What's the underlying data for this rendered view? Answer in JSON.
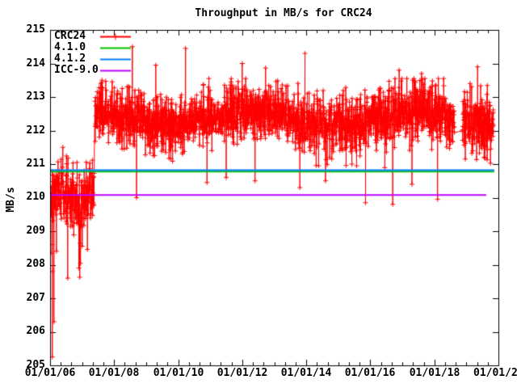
{
  "window": {
    "bg": "#ffffff",
    "frame_color": "#000000"
  },
  "chart_data": {
    "type": "scatter",
    "title": "Throughput in MB/s for CRC24",
    "xlabel": "",
    "ylabel": "MB/s",
    "x_range_years": [
      2006,
      2020
    ],
    "y_range": [
      205,
      215
    ],
    "grid": false,
    "legend_position": "top-left-inside",
    "x_major_tick_labels": [
      "01/01/06",
      "01/01/08",
      "01/01/10",
      "01/01/12",
      "01/01/14",
      "01/01/16",
      "01/01/18",
      "01/01/2"
    ],
    "x_minor_intervals_per_major": 6,
    "y_tick_labels": [
      "215",
      "214",
      "213",
      "212",
      "211",
      "210",
      "209",
      "208",
      "207",
      "206",
      "205"
    ],
    "series": [
      {
        "name": "CRC24",
        "color": "#ff0000",
        "style": "linespoints",
        "marker": "plus",
        "summary": "Daily throughput samples; 2006.0-2007.4 noisy cluster mean ~210.1 MB/s (range 208.3-211.6, spikes down to 205.3); from 2007.4-2019.85 band mean ~212.35 MB/s (range ~211.0-213.6) with occasional dips to ~209.8-210.6 and spikes to ~214.5; data gap 2018.63-2018.87",
        "segments": [
          {
            "t0": 2006.02,
            "t1": 2007.38,
            "step": 0.006,
            "base": 210.05,
            "wave_amp": 0.3,
            "wave_freq": 5.5,
            "sigma": 0.55,
            "clip": [
              208.3,
              211.55
            ],
            "tail_p": 0.07,
            "tail_max": 1.6,
            "spike_p": 0.01,
            "spike_max": 0.3
          },
          {
            "t0": 2007.4,
            "t1": 2019.85,
            "step": 0.0055,
            "base": 212.35,
            "wave_amp": 0.22,
            "wave_freq": 1.25,
            "sigma": 0.42,
            "clip": [
              210.95,
              213.55
            ],
            "tail_p": 0.045,
            "tail_max": 0.75,
            "spike_p": 0.02,
            "spike_max": 0.6
          }
        ],
        "gaps": [
          [
            2018.63,
            2018.87
          ]
        ],
        "outliers": [
          [
            2006.07,
            205.25
          ],
          [
            2006.07,
            207.8
          ],
          [
            2006.12,
            206.3
          ],
          [
            2006.2,
            208.4
          ],
          [
            2006.55,
            207.6
          ],
          [
            2006.9,
            207.9
          ],
          [
            2008.57,
            214.5
          ],
          [
            2008.7,
            210.0
          ],
          [
            2009.3,
            213.95
          ],
          [
            2010.23,
            214.45
          ],
          [
            2010.9,
            210.45
          ],
          [
            2011.5,
            210.6
          ],
          [
            2012.0,
            214.0
          ],
          [
            2012.4,
            210.5
          ],
          [
            2013.8,
            210.3
          ],
          [
            2013.96,
            214.3
          ],
          [
            2014.6,
            210.5
          ],
          [
            2015.85,
            209.85
          ],
          [
            2016.7,
            209.8
          ],
          [
            2016.9,
            213.8
          ],
          [
            2017.3,
            210.4
          ],
          [
            2017.6,
            213.7
          ],
          [
            2018.1,
            209.95
          ],
          [
            2019.35,
            213.9
          ]
        ]
      },
      {
        "name": "4.1.0",
        "color": "#00c000",
        "style": "hline",
        "value": 210.78,
        "t0": 2006.0,
        "t1": 2019.87
      },
      {
        "name": "4.1.2",
        "color": "#0080ff",
        "style": "hline",
        "value": 210.82,
        "t0": 2006.0,
        "t1": 2019.87
      },
      {
        "name": "ICC-9.0",
        "color": "#c000ff",
        "style": "hline",
        "value": 210.08,
        "t0": 2006.0,
        "t1": 2019.62
      }
    ]
  }
}
